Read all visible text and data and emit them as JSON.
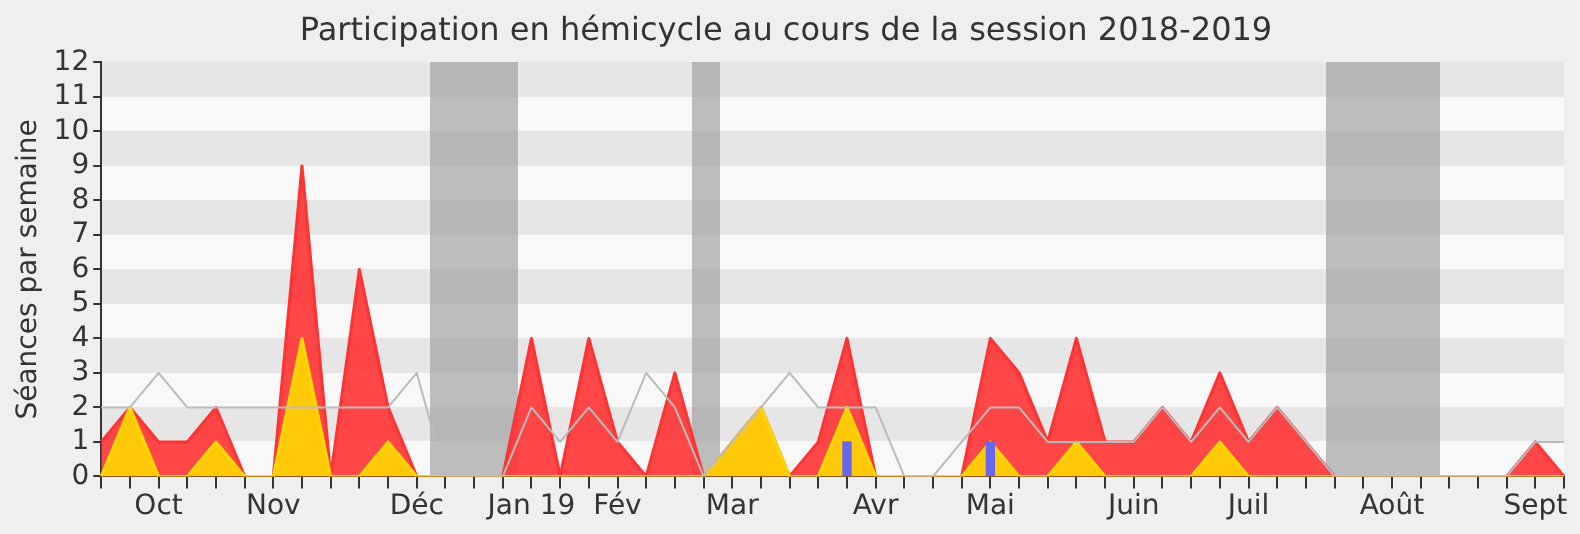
{
  "chart_data": {
    "type": "area",
    "title": "Participation en hémicycle au cours de la session 2018-2019",
    "ylabel": "Séances par semaine",
    "categories": [
      null,
      null,
      "Oct",
      null,
      null,
      null,
      "Nov",
      null,
      null,
      null,
      null,
      "Déc",
      null,
      null,
      null,
      "Jan 19",
      null,
      null,
      "Fév",
      null,
      null,
      null,
      "Mar",
      null,
      null,
      null,
      null,
      "Avr",
      null,
      null,
      null,
      "Mai",
      null,
      null,
      null,
      null,
      "Juin",
      null,
      null,
      null,
      "Juil",
      null,
      null,
      null,
      null,
      "Août",
      null,
      null,
      null,
      null,
      "Sept",
      null
    ],
    "series": [
      {
        "type": "line",
        "color": "#bbbbbb",
        "values": [
          2,
          2,
          3,
          2,
          2,
          2,
          2,
          2,
          2,
          2,
          2,
          3,
          0,
          0,
          0,
          2,
          1,
          2,
          1,
          3,
          2,
          0,
          1,
          2,
          3,
          2,
          2,
          2,
          0,
          0,
          1,
          2,
          2,
          1,
          1,
          1,
          1,
          2,
          1,
          2,
          1,
          2,
          1,
          0,
          0,
          0,
          0,
          0,
          0,
          0,
          1,
          1
        ]
      },
      {
        "color": "#ff3333",
        "values": [
          1,
          2,
          1,
          1,
          2,
          0,
          0,
          9,
          0,
          6,
          2,
          0,
          0,
          0,
          0,
          4,
          0,
          4,
          1,
          0,
          3,
          0,
          1,
          2,
          0,
          1,
          4,
          0,
          0,
          0,
          0,
          4,
          3,
          1,
          4,
          1,
          1,
          2,
          1,
          3,
          1,
          2,
          1,
          0,
          0,
          0,
          0,
          0,
          0,
          0,
          1,
          0
        ]
      },
      {
        "color": "#ffd700",
        "values": [
          0,
          2,
          0,
          0,
          1,
          0,
          0,
          4,
          0,
          0,
          1,
          0,
          0,
          0,
          0,
          0,
          0,
          0,
          0,
          0,
          0,
          0,
          1,
          2,
          0,
          0,
          2,
          0,
          0,
          0,
          0,
          1,
          0,
          0,
          1,
          0,
          0,
          0,
          0,
          1,
          0,
          0,
          0,
          0,
          0,
          0,
          0,
          0,
          0,
          0,
          0,
          0
        ]
      },
      {
        "type": "bar",
        "color": "#6666ee",
        "values": [
          null,
          null,
          null,
          null,
          null,
          null,
          null,
          null,
          null,
          null,
          null,
          null,
          null,
          null,
          null,
          null,
          null,
          null,
          null,
          null,
          null,
          null,
          null,
          null,
          null,
          null,
          1,
          null,
          null,
          null,
          null,
          1,
          null,
          null,
          null,
          null,
          null,
          null,
          null,
          null,
          null,
          null,
          null,
          null,
          null,
          null,
          null,
          null,
          null,
          null,
          null,
          null
        ]
      }
    ],
    "ylim": [
      0,
      12
    ],
    "yticks": [
      0,
      1,
      2,
      3,
      4,
      5,
      6,
      7,
      8,
      9,
      10,
      11,
      12
    ]
  }
}
